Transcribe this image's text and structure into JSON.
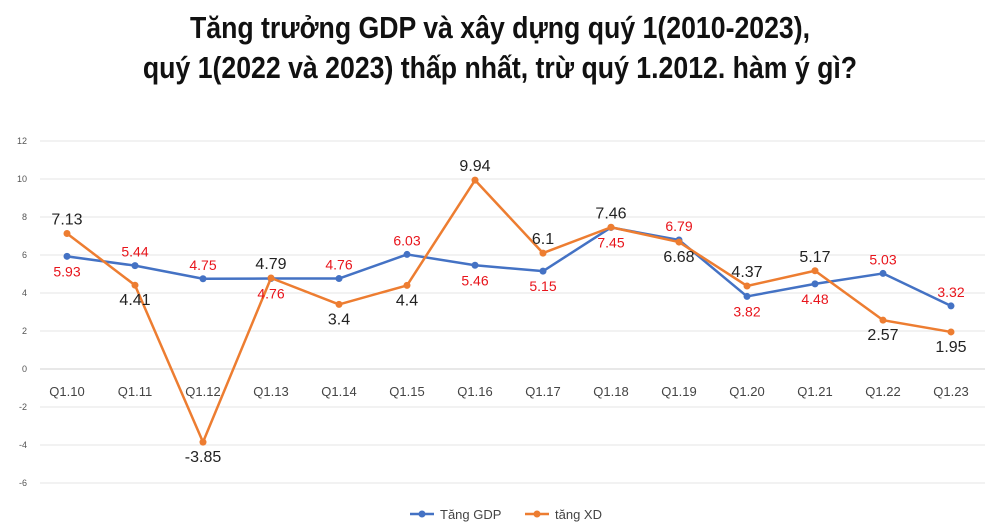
{
  "chart_data": {
    "type": "line",
    "title": [
      "Tăng trưởng GDP và xây dựng quý 1(2010-2023),",
      "quý 1(2022 và 2023) thấp nhất, trừ quý 1.2012. hàm ý gì?"
    ],
    "categories": [
      "Q1.10",
      "Q1.11",
      "Q1.12",
      "Q1.13",
      "Q1.14",
      "Q1.15",
      "Q1.16",
      "Q1.17",
      "Q1.18",
      "Q1.19",
      "Q1.20",
      "Q1.21",
      "Q1.22",
      "Q1.23"
    ],
    "ylim": [
      -6,
      12
    ],
    "yticks": [
      -6,
      -4,
      -2,
      0,
      2,
      4,
      6,
      8,
      10,
      12
    ],
    "grid": true,
    "legend": "bottom",
    "series": [
      {
        "name": "Tăng GDP",
        "color": "#4472C4",
        "label_color": "#E8141B",
        "values": [
          5.93,
          5.44,
          4.75,
          4.76,
          4.76,
          6.03,
          5.46,
          5.15,
          7.45,
          6.79,
          3.82,
          4.48,
          5.03,
          3.32
        ]
      },
      {
        "name": "tăng XD",
        "color": "#ED7D31",
        "label_color": "#222222",
        "values": [
          7.13,
          4.41,
          -3.85,
          4.79,
          3.4,
          4.4,
          9.94,
          6.1,
          7.46,
          6.68,
          4.37,
          5.17,
          2.57,
          1.95
        ]
      }
    ]
  }
}
